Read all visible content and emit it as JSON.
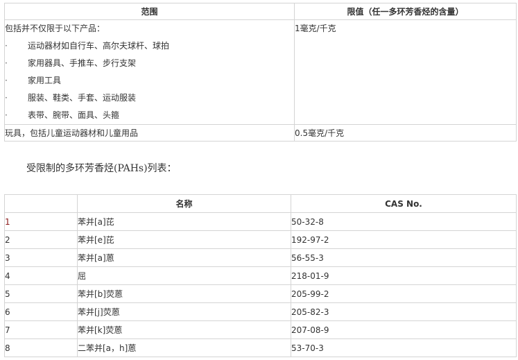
{
  "limits_table": {
    "headers": [
      "范围",
      "限值（任一多环芳香烃的含量）"
    ],
    "row1": {
      "intro": "包括并不仅限于以下产品：",
      "bullet": "·",
      "items": [
        "运动器材如自行车、高尔夫球杆、球拍",
        "家用器具、手推车、步行支架",
        "家用工具",
        "服装、鞋类、手套、运动服装",
        "表带、腕带、面具、头箍"
      ],
      "limit": "1毫克/千克"
    },
    "row2": {
      "scope": "玩具，包括儿童运动器材和儿童用品",
      "limit": "0.5毫克/千克"
    }
  },
  "paragraph": "受限制的多环芳香烃(PAHs)列表：",
  "pah_table": {
    "headers": [
      "",
      "名称",
      "CAS No."
    ],
    "rows": [
      [
        "1",
        "苯并[a]芘",
        "50-32-8"
      ],
      [
        "2",
        "苯并[e]芘",
        "192-97-2"
      ],
      [
        "3",
        "苯并[a]蒽",
        "56-55-3"
      ],
      [
        "4",
        "屈",
        "218-01-9"
      ],
      [
        "5",
        "苯并[b]荧蒽",
        "205-99-2"
      ],
      [
        "6",
        "苯并[j]荧蒽",
        "205-82-3"
      ],
      [
        "7",
        "苯并[k]荧蒽",
        "207-08-9"
      ],
      [
        "8",
        "二苯并[a，h]蒽",
        "53-70-3"
      ]
    ]
  }
}
